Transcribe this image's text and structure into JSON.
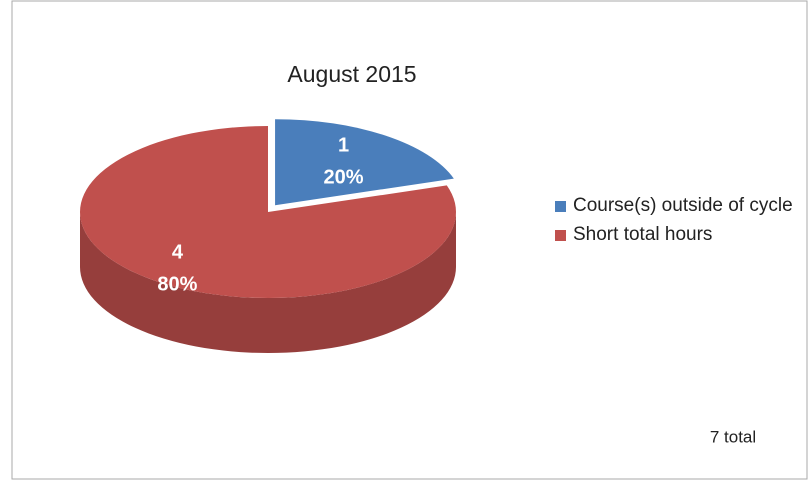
{
  "chart_data": {
    "type": "pie3d",
    "title": "August 2015",
    "categories": [
      "Course(s) outside of cycle",
      "Short total hours"
    ],
    "values": [
      1,
      4
    ],
    "percent_labels": [
      "20%",
      "80%"
    ],
    "colors": [
      "#4a7ebb",
      "#c0504d"
    ],
    "legend": "right",
    "annotation": "7 total"
  }
}
